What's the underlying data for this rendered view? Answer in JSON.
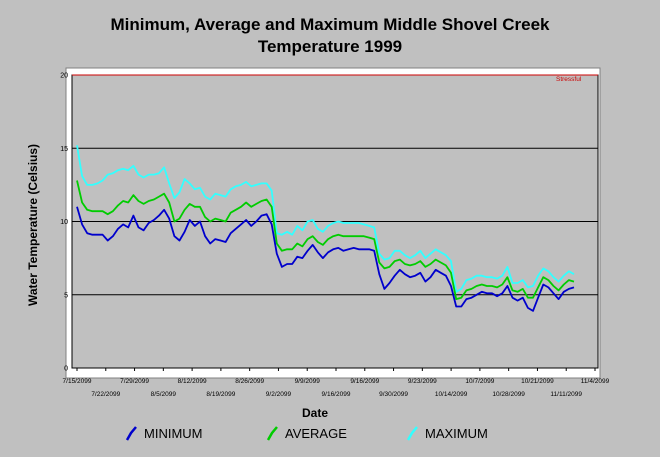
{
  "chart_data": {
    "type": "line",
    "title_line1": "Minimum, Average and Maximum Middle Shovel Creek",
    "title_line2": "Temperature 1999",
    "xlabel": "Date",
    "ylabel": "Water Temperature (Celsius)",
    "ylim": [
      0,
      20
    ],
    "yticks": [
      0,
      5,
      10,
      15,
      20
    ],
    "grid": "horizontal",
    "threshold": {
      "value": 20,
      "label": "Stressful",
      "color": "#cc0000"
    },
    "x_tick_labels_top": [
      "7/15/2099",
      "7/29/2099",
      "8/12/2099",
      "8/26/2099",
      "9/9/2099",
      "9/16/2099",
      "9/23/2099",
      "10/7/2099",
      "10/21/2099",
      "11/4/2099"
    ],
    "x_tick_labels_bottom": [
      "7/22/2099",
      "8/5/2099",
      "8/19/2099",
      "9/2/2099",
      "9/16/2099",
      "9/30/2099",
      "10/14/2099",
      "10/28/2099",
      "11/11/2099"
    ],
    "legend_position": "bottom",
    "series": [
      {
        "name": "MINIMUM",
        "color": "#0000cc",
        "values": [
          11.0,
          9.8,
          9.2,
          9.1,
          9.1,
          9.1,
          8.7,
          9.0,
          9.5,
          9.8,
          9.6,
          10.4,
          9.6,
          9.4,
          9.9,
          10.1,
          10.4,
          10.8,
          10.2,
          9.0,
          8.7,
          9.3,
          10.1,
          9.7,
          10.0,
          9.0,
          8.5,
          8.8,
          8.7,
          8.6,
          9.2,
          9.5,
          9.8,
          10.1,
          9.7,
          10.0,
          10.4,
          10.5,
          9.8,
          7.8,
          6.9,
          7.1,
          7.1,
          7.6,
          7.5,
          8.0,
          8.4,
          7.9,
          7.5,
          7.9,
          8.1,
          8.2,
          8.0,
          8.1,
          8.2,
          8.1,
          8.1,
          8.1,
          8.0,
          6.4,
          5.4,
          5.8,
          6.3,
          6.7,
          6.4,
          6.2,
          6.3,
          6.5,
          5.9,
          6.2,
          6.7,
          6.5,
          6.3,
          5.6,
          4.2,
          4.2,
          4.7,
          4.8,
          5.0,
          5.2,
          5.1,
          5.1,
          4.9,
          5.1,
          5.6,
          4.8,
          4.6,
          4.8,
          4.1,
          3.9,
          4.8,
          5.7,
          5.5,
          5.1,
          4.7,
          5.2,
          5.4,
          5.5
        ]
      },
      {
        "name": "AVERAGE",
        "color": "#00cc00",
        "values": [
          12.8,
          11.3,
          10.8,
          10.7,
          10.7,
          10.7,
          10.5,
          10.7,
          11.1,
          11.4,
          11.3,
          11.8,
          11.4,
          11.2,
          11.4,
          11.5,
          11.7,
          11.9,
          11.3,
          10.0,
          10.2,
          10.8,
          11.2,
          11.0,
          11.0,
          10.3,
          10.0,
          10.2,
          10.1,
          10.0,
          10.6,
          10.8,
          11.0,
          11.3,
          11.0,
          11.2,
          11.4,
          11.5,
          11.0,
          8.5,
          8.0,
          8.1,
          8.1,
          8.5,
          8.3,
          8.8,
          9.0,
          8.6,
          8.4,
          8.8,
          9.0,
          9.1,
          9.0,
          9.0,
          9.0,
          9.0,
          9.0,
          8.9,
          8.8,
          7.2,
          6.8,
          6.9,
          7.3,
          7.4,
          7.1,
          7.0,
          7.1,
          7.3,
          6.9,
          7.1,
          7.4,
          7.2,
          7.0,
          6.5,
          4.7,
          4.8,
          5.3,
          5.4,
          5.6,
          5.7,
          5.6,
          5.6,
          5.5,
          5.7,
          6.2,
          5.3,
          5.2,
          5.4,
          4.8,
          4.8,
          5.5,
          6.2,
          6.0,
          5.6,
          5.3,
          5.7,
          6.0,
          5.9
        ]
      },
      {
        "name": "MAXIMUM",
        "color": "#33ffff",
        "values": [
          15.2,
          13.1,
          12.5,
          12.5,
          12.6,
          12.8,
          13.2,
          13.3,
          13.5,
          13.6,
          13.5,
          13.8,
          13.2,
          13.0,
          13.2,
          13.2,
          13.3,
          13.7,
          12.6,
          11.6,
          12.0,
          12.9,
          12.6,
          12.2,
          12.3,
          11.7,
          11.5,
          11.9,
          11.8,
          11.7,
          12.2,
          12.4,
          12.5,
          12.7,
          12.4,
          12.5,
          12.6,
          12.6,
          12.1,
          9.2,
          9.1,
          9.3,
          9.1,
          9.7,
          9.4,
          10.0,
          10.1,
          9.5,
          9.3,
          9.7,
          9.9,
          10.0,
          9.9,
          9.9,
          9.9,
          9.9,
          9.8,
          9.7,
          9.6,
          7.8,
          7.4,
          7.5,
          8.0,
          8.0,
          7.7,
          7.5,
          7.7,
          8.0,
          7.5,
          7.8,
          8.1,
          7.9,
          7.7,
          7.3,
          5.2,
          5.4,
          6.0,
          6.1,
          6.3,
          6.3,
          6.2,
          6.2,
          6.1,
          6.3,
          6.9,
          5.8,
          5.8,
          6.0,
          5.5,
          5.6,
          6.3,
          6.8,
          6.6,
          6.2,
          5.9,
          6.3,
          6.6,
          6.4
        ]
      }
    ]
  }
}
